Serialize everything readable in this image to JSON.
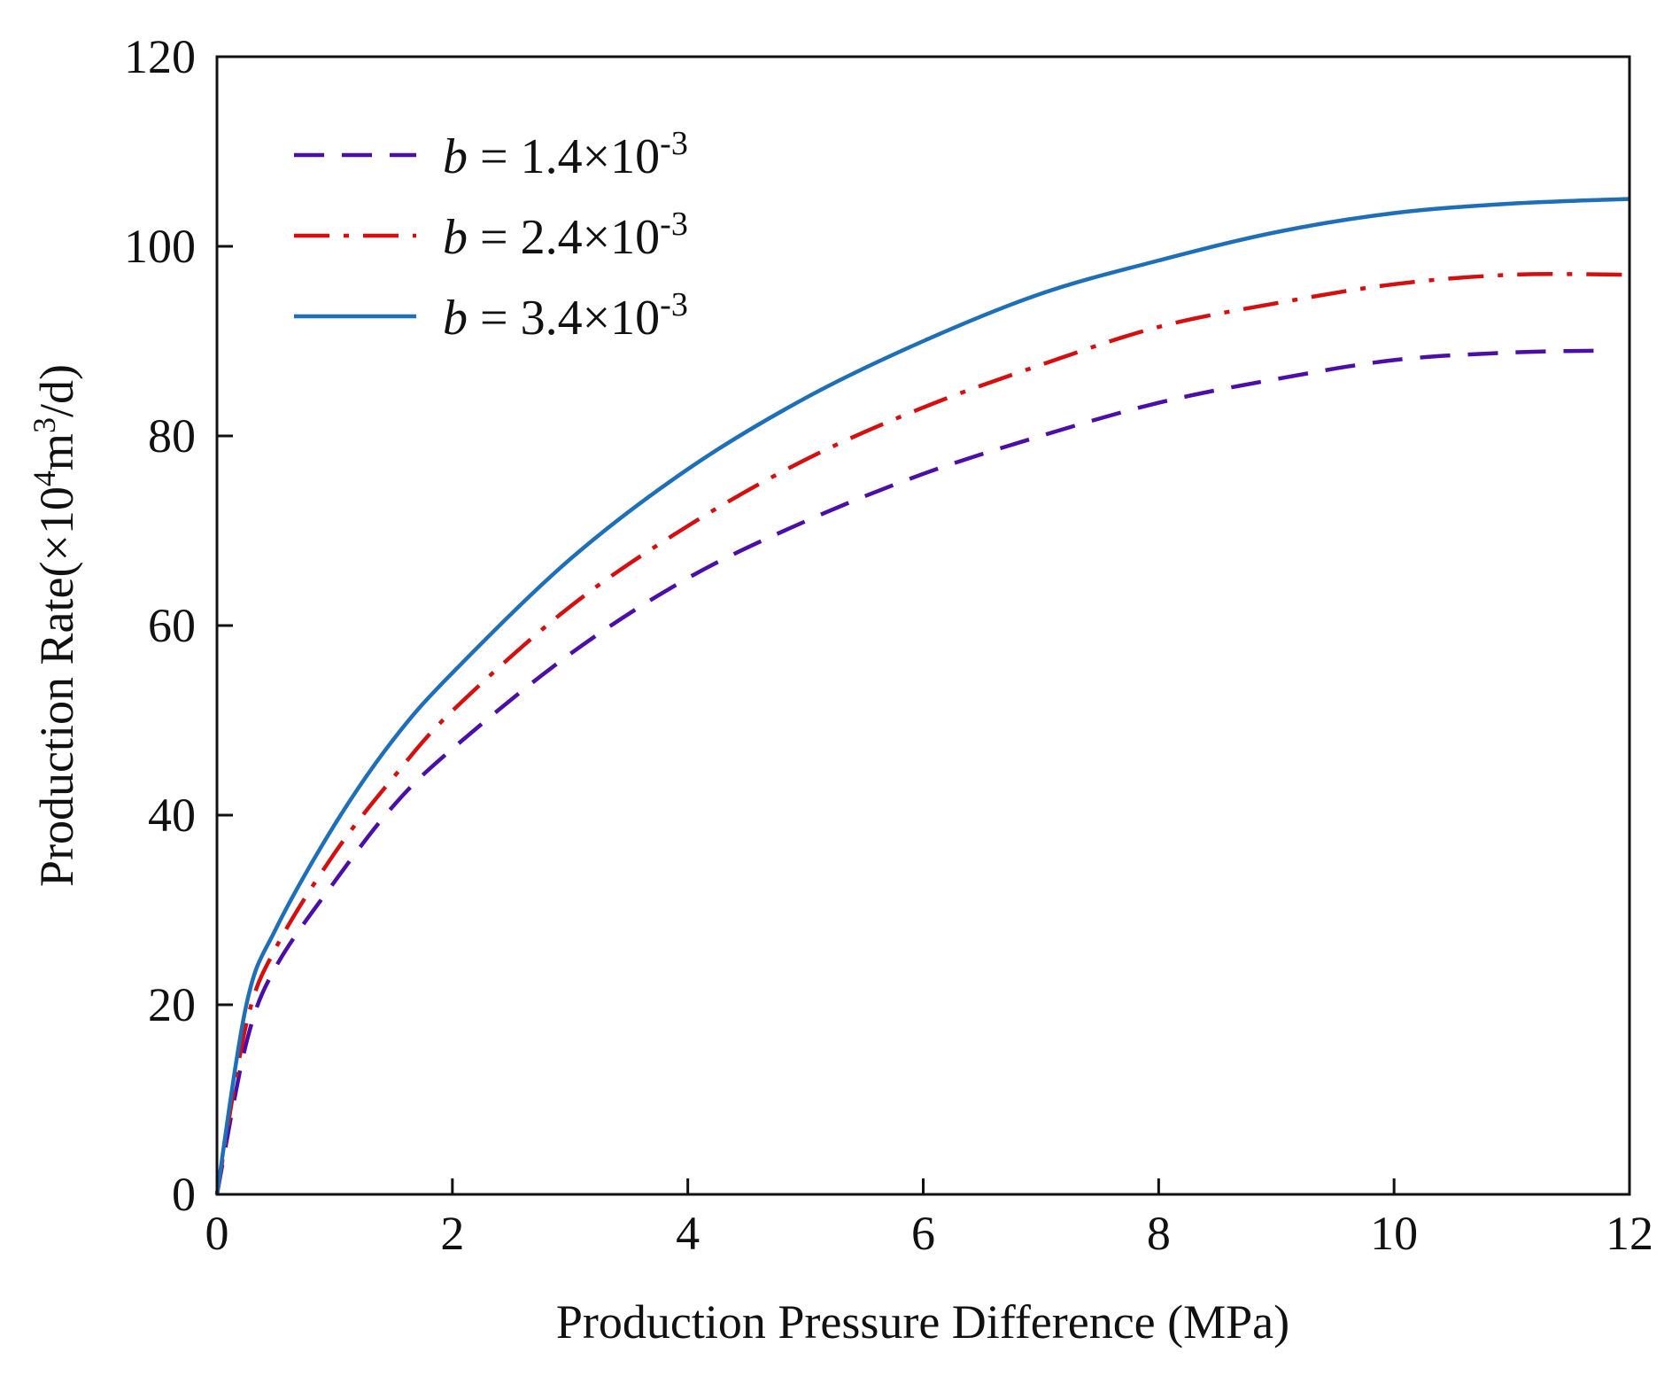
{
  "chart_data": {
    "type": "line",
    "xlabel": "Production Pressure Difference (MPa)",
    "ylabel": {
      "prefix": "Production Rate(×10",
      "exp1": "4",
      "mid": "m",
      "exp2": "3",
      "suffix": "/d)"
    },
    "xlim": [
      0,
      12
    ],
    "ylim": [
      0,
      120
    ],
    "xticks": [
      "0",
      "2",
      "4",
      "6",
      "8",
      "10",
      "12"
    ],
    "yticks": [
      "0",
      "20",
      "40",
      "60",
      "80",
      "100",
      "120"
    ],
    "grid": false,
    "legend_position": "top-left",
    "series": [
      {
        "name": "b = 1.4×10-3",
        "label": {
          "var": "b",
          "eq": " = 1.4×10",
          "exp": "-3"
        },
        "color": "#4B0FA8",
        "style": "dashed",
        "x": [
          0,
          0.25,
          0.5,
          1,
          1.5,
          2,
          3,
          4,
          5,
          6,
          7,
          8,
          9,
          10,
          11,
          11.8
        ],
        "y": [
          0,
          16,
          24,
          33,
          41,
          47,
          57,
          65,
          71,
          76,
          80,
          83.5,
          86,
          88,
          88.8,
          89
        ]
      },
      {
        "name": "b = 2.4×10-3",
        "label": {
          "var": "b",
          "eq": " = 2.4×10",
          "exp": "-3"
        },
        "color": "#D40F0F",
        "style": "dashdot",
        "x": [
          0,
          0.25,
          0.5,
          1,
          1.5,
          2,
          3,
          4,
          5,
          6,
          7,
          8,
          9,
          10,
          11,
          12
        ],
        "y": [
          0,
          18,
          26,
          36,
          44,
          51,
          62,
          70.5,
          77.5,
          83,
          87.5,
          91.5,
          94,
          96,
          97,
          97
        ]
      },
      {
        "name": "b = 3.4×10-3",
        "label": {
          "var": "b",
          "eq": " = 3.4×10",
          "exp": "-3"
        },
        "color": "#1F6FB8",
        "style": "solid",
        "x": [
          0,
          0.25,
          0.5,
          1,
          1.5,
          2,
          3,
          4,
          5,
          6,
          7,
          8,
          9,
          10,
          11,
          12
        ],
        "y": [
          0,
          20,
          28,
          39,
          48,
          55,
          67,
          76.5,
          84,
          90,
          95,
          98.5,
          101.5,
          103.5,
          104.5,
          105
        ]
      }
    ]
  }
}
